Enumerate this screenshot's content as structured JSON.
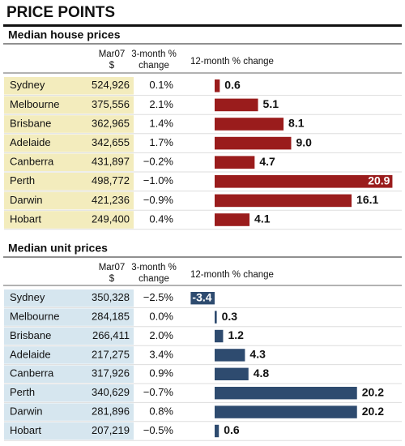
{
  "title": "PRICE POINTS",
  "sections": [
    {
      "title": "Median house prices",
      "headers": [
        [
          "Mar07",
          "$"
        ],
        [
          "3-month %",
          "change"
        ],
        [
          "12-month % change"
        ]
      ],
      "tint": "#f3ecbd",
      "bar_color": "#9a1c1c",
      "rows": [
        {
          "city": "Sydney",
          "price": "524,926",
          "change_3m": "0.1%",
          "change_12m": 0.6
        },
        {
          "city": "Melbourne",
          "price": "375,556",
          "change_3m": "2.1%",
          "change_12m": 5.1
        },
        {
          "city": "Brisbane",
          "price": "362,965",
          "change_3m": "1.4%",
          "change_12m": 8.1
        },
        {
          "city": "Adelaide",
          "price": "342,655",
          "change_3m": "1.7%",
          "change_12m": 9.0,
          "change_12m_label": "9.0"
        },
        {
          "city": "Canberra",
          "price": "431,897",
          "change_3m": "−0.2%",
          "change_12m": 4.7
        },
        {
          "city": "Perth",
          "price": "498,772",
          "change_3m": "−1.0%",
          "change_12m": 20.9
        },
        {
          "city": "Darwin",
          "price": "421,236",
          "change_3m": "−0.9%",
          "change_12m": 16.1
        },
        {
          "city": "Hobart",
          "price": "249,400",
          "change_3m": "0.4%",
          "change_12m": 4.1
        }
      ]
    },
    {
      "title": "Median unit prices",
      "headers": [
        [
          "Mar07",
          "$"
        ],
        [
          "3-month %",
          "change"
        ],
        [
          "12-month % change"
        ]
      ],
      "tint": "#d6e6ef",
      "bar_color": "#2e4b6f",
      "rows": [
        {
          "city": "Sydney",
          "price": "350,328",
          "change_3m": "−2.5%",
          "change_12m": -3.4
        },
        {
          "city": "Melbourne",
          "price": "284,185",
          "change_3m": "0.0%",
          "change_12m": 0.3
        },
        {
          "city": "Brisbane",
          "price": "266,411",
          "change_3m": "2.0%",
          "change_12m": 1.2
        },
        {
          "city": "Adelaide",
          "price": "217,275",
          "change_3m": "3.4%",
          "change_12m": 4.3
        },
        {
          "city": "Canberra",
          "price": "317,926",
          "change_3m": "0.9%",
          "change_12m": 4.8
        },
        {
          "city": "Perth",
          "price": "340,629",
          "change_3m": "−0.7%",
          "change_12m": 20.2
        },
        {
          "city": "Darwin",
          "price": "281,896",
          "change_3m": "0.8%",
          "change_12m": 20.2
        },
        {
          "city": "Hobart",
          "price": "207,219",
          "change_3m": "−0.5%",
          "change_12m": 0.6
        }
      ]
    }
  ]
}
